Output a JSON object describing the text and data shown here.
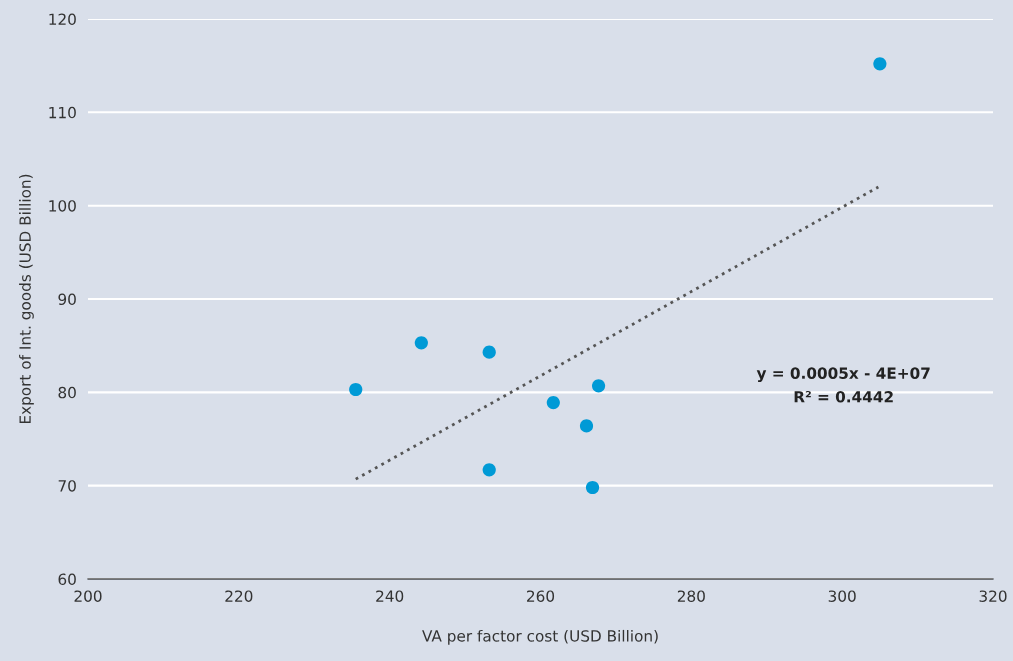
{
  "chart_data": {
    "type": "scatter",
    "xlabel": "VA per factor cost (USD Billion)",
    "ylabel": "Export of Int. goods (USD Billion)",
    "xlim": [
      200,
      320
    ],
    "xticks": [
      200,
      220,
      240,
      260,
      280,
      300,
      320
    ],
    "ylim": [
      60,
      120
    ],
    "yticks": [
      60,
      70,
      80,
      90,
      100,
      110,
      120
    ],
    "grid": "y",
    "series": [
      {
        "color": "#009ad6",
        "marker": "circle",
        "x": [
          235.5,
          244.2,
          253.2,
          253.2,
          261.7,
          267.7,
          266.1,
          266.9,
          305.0
        ],
        "values": [
          80.3,
          85.3,
          84.3,
          71.7,
          78.9,
          80.7,
          76.4,
          69.8,
          115.2
        ]
      },
      {
        "type": "line",
        "color": "#555555",
        "marker": "none",
        "line_style": "dotted",
        "x": [
          235.5,
          304.8
        ],
        "values": [
          70.7,
          102.0
        ]
      }
    ],
    "annotations": [
      "y = 0.0005x - 4E+07",
      "R² = 0.4442"
    ]
  }
}
